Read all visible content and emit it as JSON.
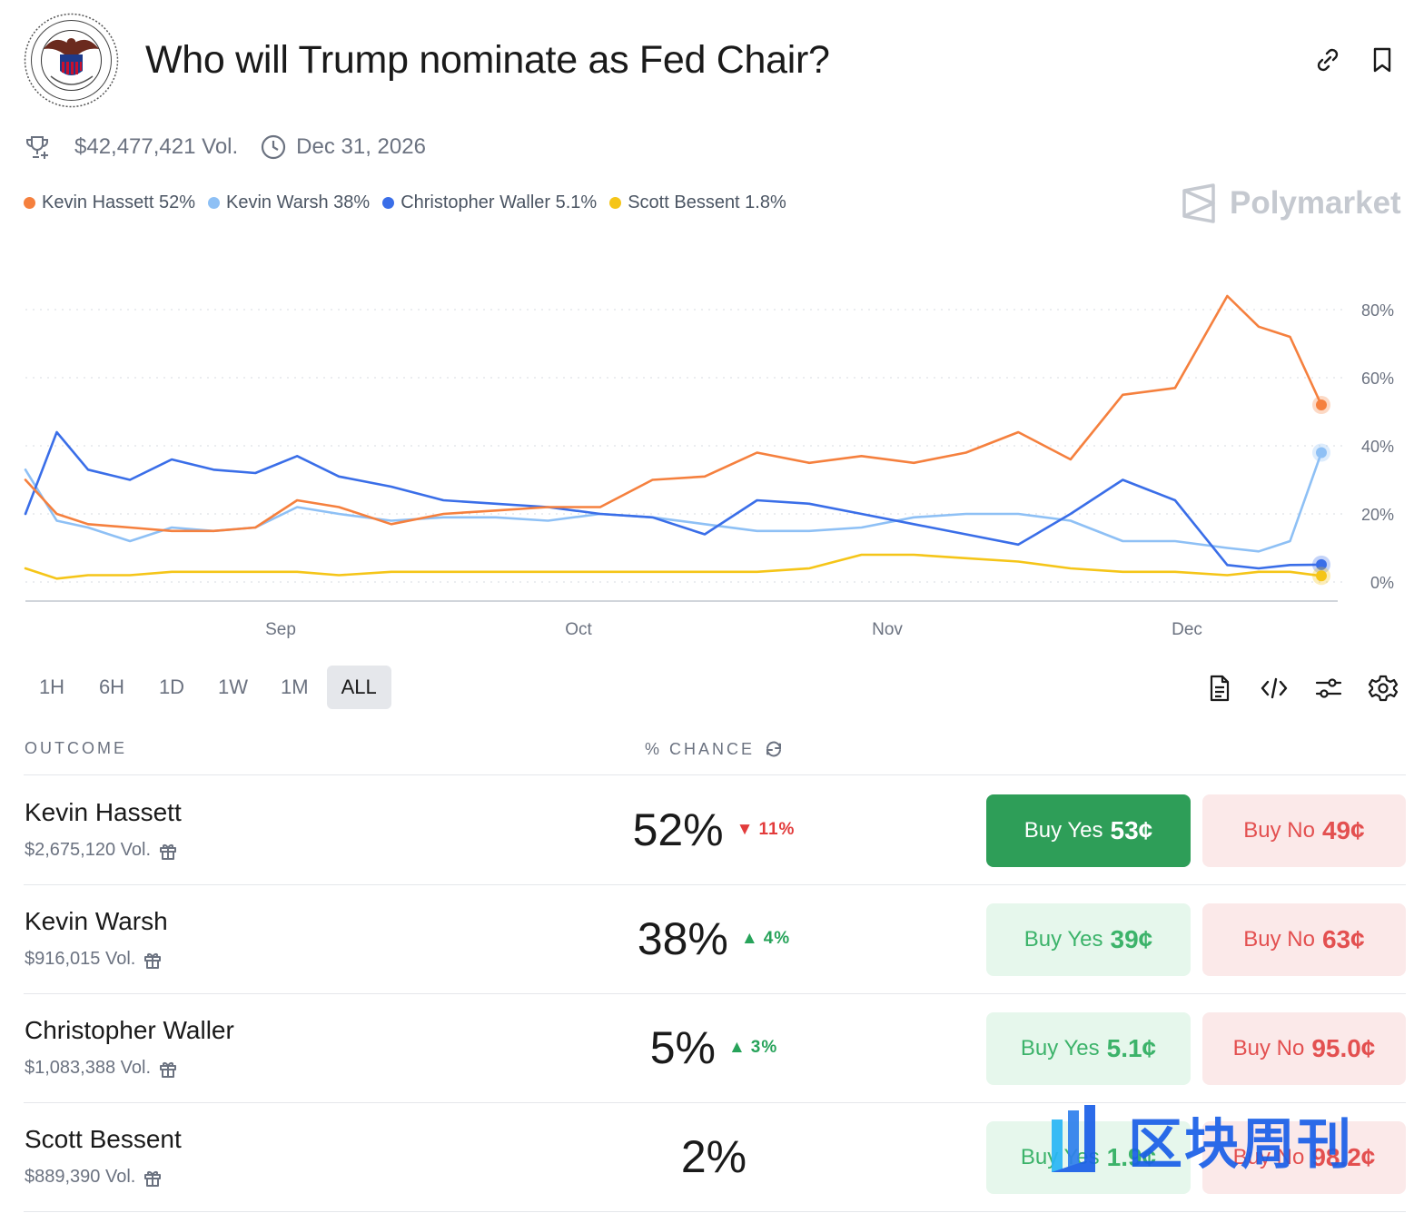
{
  "header": {
    "title": "Who will Trump nominate as Fed Chair?",
    "seal_text": "BOARD OF GOVERNORS OF THE FEDERAL RESERVE SYSTEM"
  },
  "meta": {
    "volume": "$42,477,421 Vol.",
    "end_date": "Dec 31, 2026"
  },
  "brand": "Polymarket",
  "legend": [
    {
      "label": "Kevin Hassett 52%",
      "color": "#f5803e"
    },
    {
      "label": "Kevin Warsh 38%",
      "color": "#8ec0f5"
    },
    {
      "label": "Christopher Waller 5.1%",
      "color": "#3a6ee8"
    },
    {
      "label": "Scott Bessent 1.8%",
      "color": "#f5c518"
    }
  ],
  "chart_data": {
    "type": "line",
    "x_ticks": [
      "Sep",
      "Oct",
      "Nov",
      "Dec"
    ],
    "y_ticks": [
      "80%",
      "60%",
      "40%",
      "20%",
      "0%"
    ],
    "ylim": [
      0,
      85
    ],
    "x": [
      0,
      3,
      6,
      10,
      14,
      18,
      22,
      26,
      30,
      35,
      40,
      45,
      50,
      55,
      60,
      65,
      70,
      75,
      80,
      85,
      90,
      95,
      100,
      105,
      110,
      115,
      118,
      121,
      124
    ],
    "series": [
      {
        "name": "Kevin Hassett",
        "color": "#f5803e",
        "values": [
          30,
          20,
          17,
          16,
          15,
          15,
          16,
          24,
          22,
          17,
          20,
          21,
          22,
          22,
          30,
          31,
          38,
          35,
          37,
          35,
          38,
          44,
          36,
          55,
          57,
          84,
          75,
          72,
          52
        ]
      },
      {
        "name": "Kevin Warsh",
        "color": "#8ec0f5",
        "values": [
          33,
          18,
          16,
          12,
          16,
          15,
          16,
          22,
          20,
          18,
          19,
          19,
          18,
          20,
          19,
          17,
          15,
          15,
          16,
          19,
          20,
          20,
          18,
          12,
          12,
          10,
          9,
          12,
          38
        ]
      },
      {
        "name": "Christopher Waller",
        "color": "#3a6ee8",
        "values": [
          20,
          44,
          33,
          30,
          36,
          33,
          32,
          37,
          31,
          28,
          24,
          23,
          22,
          20,
          19,
          14,
          24,
          23,
          20,
          17,
          14,
          11,
          20,
          30,
          24,
          5,
          4,
          5,
          5.1
        ]
      },
      {
        "name": "Scott Bessent",
        "color": "#f5c518",
        "values": [
          4,
          1,
          2,
          2,
          3,
          3,
          3,
          3,
          2,
          3,
          3,
          3,
          3,
          3,
          3,
          3,
          3,
          4,
          8,
          8,
          7,
          6,
          4,
          3,
          3,
          2,
          3,
          3,
          1.8
        ]
      }
    ]
  },
  "range": {
    "buttons": [
      "1H",
      "6H",
      "1D",
      "1W",
      "1M",
      "ALL"
    ],
    "active": "ALL"
  },
  "table": {
    "col_outcome": "OUTCOME",
    "col_chance": "% CHANCE",
    "rows": [
      {
        "name": "Kevin Hassett",
        "volume": "$2,675,120 Vol.",
        "pct": "52%",
        "delta": "11%",
        "delta_dir": "down",
        "yes_label": "Buy Yes",
        "yes_price": "53¢",
        "no_label": "Buy No",
        "no_price": "49¢"
      },
      {
        "name": "Kevin Warsh",
        "volume": "$916,015 Vol.",
        "pct": "38%",
        "delta": "4%",
        "delta_dir": "up",
        "yes_label": "Buy Yes",
        "yes_price": "39¢",
        "no_label": "Buy No",
        "no_price": "63¢"
      },
      {
        "name": "Christopher Waller",
        "volume": "$1,083,388 Vol.",
        "pct": "5%",
        "delta": "3%",
        "delta_dir": "up",
        "yes_label": "Buy Yes",
        "yes_price": "5.1¢",
        "no_label": "Buy No",
        "no_price": "95.0¢"
      },
      {
        "name": "Scott Bessent",
        "volume": "$889,390 Vol.",
        "pct": "2%",
        "delta": "",
        "delta_dir": "none",
        "yes_label": "Buy Yes",
        "yes_price": "1.9¢",
        "no_label": "Buy No",
        "no_price": "98.2¢"
      }
    ]
  },
  "watermark": "区块周刊"
}
